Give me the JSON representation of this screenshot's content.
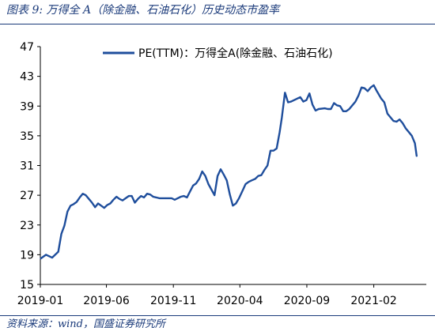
{
  "figure": {
    "title": "图表 9:  万得全 A（除金融、石油石化）历史动态市盈率",
    "source": "资料来源：wind，国盛证券研究所"
  },
  "colors": {
    "series": "#1f4e9c",
    "header": "#1a3a7a",
    "axis": "#000000"
  },
  "chart_data": {
    "type": "line",
    "title": "",
    "xlabel": "",
    "ylabel": "",
    "x_ticks": [
      "2019-01",
      "2019-06",
      "2019-11",
      "2020-04",
      "2020-09",
      "2021-02"
    ],
    "y_ticks": [
      15,
      19,
      23,
      27,
      31,
      35,
      39,
      43,
      47
    ],
    "ylim": [
      15,
      47
    ],
    "xlim": [
      "2019-01",
      "2021-06"
    ],
    "grid": false,
    "legend_position": "top-right",
    "series": [
      {
        "name": "PE(TTM)：万得全A(除金融、石油石化)",
        "x": [
          "2019-01-02",
          "2019-01-14",
          "2019-01-28",
          "2019-02-11",
          "2019-02-18",
          "2019-02-25",
          "2019-03-04",
          "2019-03-11",
          "2019-03-18",
          "2019-03-25",
          "2019-04-01",
          "2019-04-08",
          "2019-04-15",
          "2019-04-22",
          "2019-04-29",
          "2019-05-06",
          "2019-05-13",
          "2019-05-20",
          "2019-05-27",
          "2019-06-03",
          "2019-06-10",
          "2019-06-17",
          "2019-06-24",
          "2019-07-01",
          "2019-07-08",
          "2019-07-15",
          "2019-07-22",
          "2019-07-29",
          "2019-08-05",
          "2019-08-12",
          "2019-08-19",
          "2019-08-26",
          "2019-09-02",
          "2019-09-09",
          "2019-09-16",
          "2019-09-23",
          "2019-09-30",
          "2019-10-14",
          "2019-10-21",
          "2019-10-28",
          "2019-11-04",
          "2019-11-11",
          "2019-11-18",
          "2019-11-25",
          "2019-12-02",
          "2019-12-09",
          "2019-12-16",
          "2019-12-23",
          "2019-12-30",
          "2020-01-06",
          "2020-01-13",
          "2020-01-20",
          "2020-02-03",
          "2020-02-10",
          "2020-02-17",
          "2020-02-24",
          "2020-03-02",
          "2020-03-09",
          "2020-03-16",
          "2020-03-23",
          "2020-03-30",
          "2020-04-07",
          "2020-04-14",
          "2020-04-21",
          "2020-04-28",
          "2020-05-06",
          "2020-05-13",
          "2020-05-20",
          "2020-05-27",
          "2020-06-03",
          "2020-06-10",
          "2020-06-17",
          "2020-06-24",
          "2020-07-01",
          "2020-07-06",
          "2020-07-13",
          "2020-07-20",
          "2020-07-27",
          "2020-08-03",
          "2020-08-10",
          "2020-08-17",
          "2020-08-24",
          "2020-08-31",
          "2020-09-07",
          "2020-09-14",
          "2020-09-21",
          "2020-09-28",
          "2020-10-12",
          "2020-10-19",
          "2020-10-26",
          "2020-11-02",
          "2020-11-09",
          "2020-11-16",
          "2020-11-23",
          "2020-11-30",
          "2020-12-07",
          "2020-12-14",
          "2020-12-21",
          "2020-12-28",
          "2021-01-04",
          "2021-01-11",
          "2021-01-18",
          "2021-01-25",
          "2021-02-01",
          "2021-02-08",
          "2021-02-18",
          "2021-02-25",
          "2021-03-04",
          "2021-03-11",
          "2021-03-18",
          "2021-03-25",
          "2021-04-01",
          "2021-04-08",
          "2021-04-15",
          "2021-04-22",
          "2021-04-29",
          "2021-05-06",
          "2021-05-10"
        ],
        "values": [
          18.5,
          19.0,
          18.6,
          19.4,
          21.8,
          22.9,
          24.8,
          25.6,
          25.8,
          26.1,
          26.7,
          27.2,
          27.0,
          26.5,
          26.0,
          25.4,
          25.9,
          25.6,
          25.3,
          25.7,
          25.9,
          26.4,
          26.8,
          26.5,
          26.3,
          26.6,
          26.9,
          26.9,
          26.0,
          26.5,
          26.9,
          26.7,
          27.2,
          27.1,
          26.8,
          26.7,
          26.6,
          26.6,
          26.6,
          26.6,
          26.4,
          26.6,
          26.8,
          26.9,
          26.7,
          27.5,
          28.3,
          28.6,
          29.2,
          30.2,
          29.6,
          28.5,
          27.0,
          29.6,
          30.5,
          29.8,
          29.0,
          27.1,
          25.6,
          25.9,
          26.6,
          27.6,
          28.5,
          28.8,
          29.0,
          29.2,
          29.6,
          29.7,
          30.4,
          31.0,
          33.0,
          33.0,
          33.3,
          35.5,
          37.5,
          40.8,
          39.5,
          39.6,
          39.8,
          40.0,
          40.2,
          39.6,
          39.8,
          40.7,
          39.2,
          38.4,
          38.6,
          38.7,
          38.6,
          38.6,
          39.4,
          39.1,
          39.0,
          38.3,
          38.3,
          38.6,
          39.1,
          39.6,
          40.4,
          41.5,
          41.4,
          41.0,
          41.5,
          41.8,
          41.0,
          40.0,
          39.5,
          38.0,
          37.5,
          37.0,
          36.9,
          37.2,
          36.7,
          36.0,
          35.5,
          35.0,
          34.0,
          32.3
        ]
      }
    ]
  }
}
